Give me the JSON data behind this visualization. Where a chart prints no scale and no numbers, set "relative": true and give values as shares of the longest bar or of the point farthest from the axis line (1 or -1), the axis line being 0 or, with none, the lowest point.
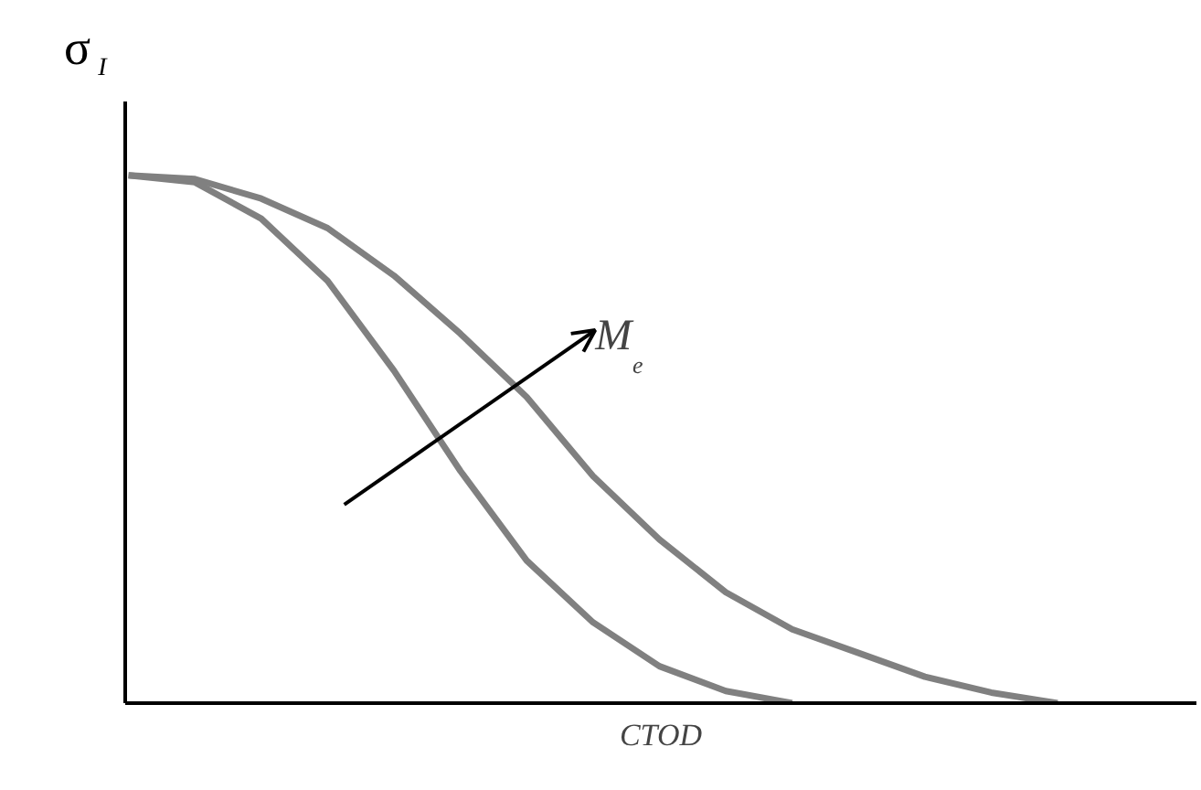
{
  "chart_data": {
    "type": "line",
    "relative": true,
    "xlabel": "CTOD",
    "ylabel": "σ$_{I}$",
    "categories": [
      null,
      null,
      null,
      null,
      null,
      null,
      null,
      null,
      null,
      null,
      null,
      null,
      null,
      null,
      null
    ],
    "annotations": [
      "M$_{e}$"
    ],
    "series": [
      {
        "color": "#808080",
        "values": [
          1.0,
          0.987,
          0.918,
          0.8,
          0.63,
          0.44,
          0.27,
          0.153,
          0.07,
          0.023,
          0.0,
          null,
          null,
          null,
          null
        ]
      },
      {
        "color": "#808080",
        "values": [
          1.0,
          0.993,
          0.956,
          0.9,
          0.81,
          0.7,
          0.58,
          0.43,
          0.31,
          0.21,
          0.14,
          0.095,
          0.05,
          0.02,
          0.0
        ]
      }
    ]
  }
}
